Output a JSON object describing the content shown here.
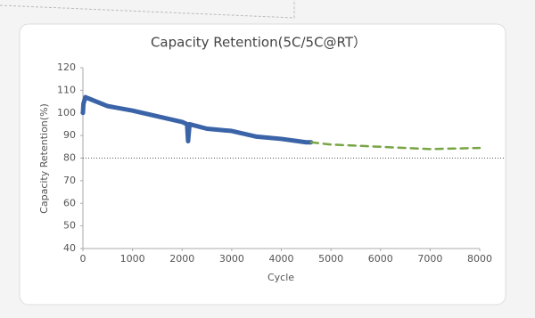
{
  "chart_data": {
    "type": "line",
    "title": "Capacity Retention(5C/5C@RT）",
    "x_label": "Cycle",
    "y_label": "Capacity Retention(%)",
    "xlim": [
      0,
      8000
    ],
    "xticks": [
      0,
      1000,
      2000,
      3000,
      4000,
      5000,
      6000,
      7000,
      8000
    ],
    "ylim": [
      40,
      120
    ],
    "yticks": [
      40,
      50,
      60,
      70,
      80,
      90,
      100,
      110,
      120
    ],
    "reference_line": 80,
    "series": [
      {
        "color": "#3b64a8",
        "style": "solid",
        "x": [
          0,
          10,
          50,
          100,
          500,
          1000,
          1500,
          2000,
          2100,
          2120,
          2150,
          2500,
          3000,
          3500,
          4000,
          4500,
          4600
        ],
        "values": [
          100,
          104,
          107,
          106.5,
          103,
          101,
          98.5,
          96,
          95,
          87.5,
          95,
          93,
          92,
          89.5,
          88.5,
          87,
          87
        ]
      },
      {
        "color": "#78a545",
        "style": "dashed",
        "x": [
          4600,
          5000,
          6000,
          7000,
          8000
        ],
        "values": [
          87,
          86,
          85,
          84,
          84.5
        ]
      }
    ]
  }
}
